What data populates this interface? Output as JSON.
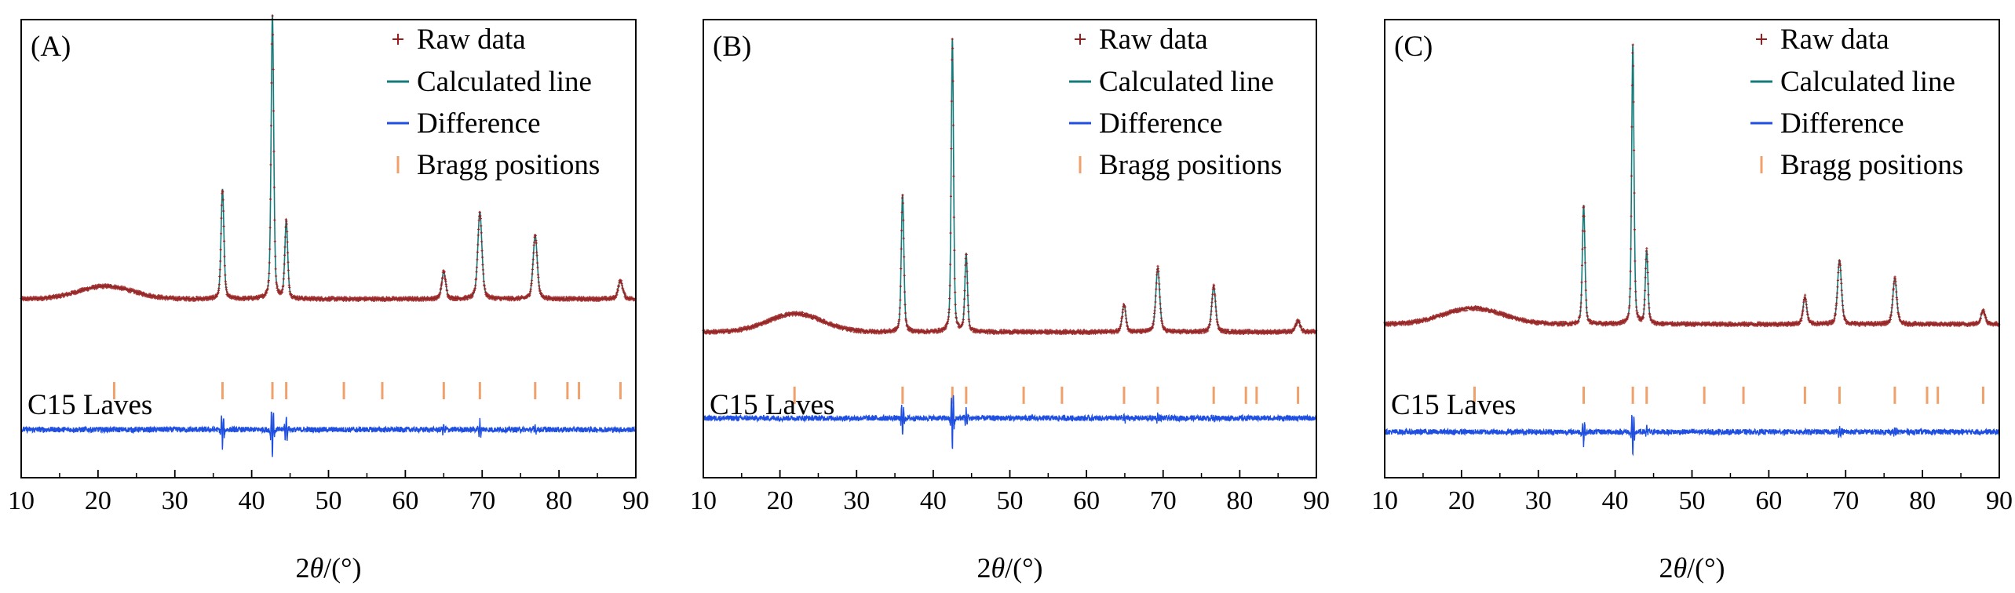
{
  "figure": {
    "description_xlabel": "2θ/(°)"
  },
  "colors": {
    "raw": "#9b1c1c",
    "calculated": "#177a7a",
    "difference": "#1f4fe0",
    "bragg": "#f0a16b",
    "axis": "#000000"
  },
  "legend": {
    "raw": "Raw data",
    "calculated": "Calculated line",
    "difference": "Difference",
    "bragg": "Bragg positions"
  },
  "chart_data": [
    {
      "type": "line",
      "panel_label": "(A)",
      "phase_label": "C15 Laves",
      "xlabel_prefix": "2",
      "xlabel_theta": "θ",
      "xlabel_suffix": "/(°)",
      "ylabel": "",
      "xlim": [
        10,
        90
      ],
      "ylim": [
        0,
        1
      ],
      "xticks": [
        10,
        20,
        30,
        40,
        50,
        60,
        70,
        80,
        90
      ],
      "series_names": [
        "Raw data",
        "Calculated line",
        "Difference"
      ],
      "raw_baseline": 0.39,
      "hump": {
        "center": 21,
        "width": 5,
        "height": 0.028
      },
      "peaks": [
        {
          "x": 36.2,
          "height": 0.24,
          "width": 0.22
        },
        {
          "x": 42.7,
          "height": 0.62,
          "width": 0.2
        },
        {
          "x": 44.5,
          "height": 0.17,
          "width": 0.22
        },
        {
          "x": 65.0,
          "height": 0.06,
          "width": 0.3
        },
        {
          "x": 69.7,
          "height": 0.19,
          "width": 0.32
        },
        {
          "x": 76.9,
          "height": 0.14,
          "width": 0.32
        },
        {
          "x": 88.0,
          "height": 0.04,
          "width": 0.35
        }
      ],
      "bragg_positions": [
        22.1,
        36.2,
        42.7,
        44.5,
        52.0,
        57.0,
        65.0,
        69.7,
        76.9,
        81.1,
        82.6,
        88.0
      ],
      "bragg_level": 0.19,
      "difference_baseline": 0.105,
      "difference_features": [
        {
          "x": 36.2,
          "amp": -0.04
        },
        {
          "x": 42.7,
          "amp": -0.06
        },
        {
          "x": 44.5,
          "amp": 0.03
        },
        {
          "x": 65.0,
          "amp": 0.01
        },
        {
          "x": 69.7,
          "amp": 0.02
        },
        {
          "x": 76.9,
          "amp": 0.01
        }
      ]
    },
    {
      "type": "line",
      "panel_label": "(B)",
      "phase_label": "C15 Laves",
      "xlabel_prefix": "2",
      "xlabel_theta": "θ",
      "xlabel_suffix": "/(°)",
      "ylabel": "",
      "xlim": [
        10,
        90
      ],
      "ylim": [
        0,
        1
      ],
      "xticks": [
        10,
        20,
        30,
        40,
        50,
        60,
        70,
        80,
        90
      ],
      "series_names": [
        "Raw data",
        "Calculated line",
        "Difference"
      ],
      "raw_baseline": 0.318,
      "hump": {
        "center": 22,
        "width": 5,
        "height": 0.04
      },
      "peaks": [
        {
          "x": 36.0,
          "height": 0.3,
          "width": 0.2
        },
        {
          "x": 42.5,
          "height": 0.64,
          "width": 0.18
        },
        {
          "x": 44.3,
          "height": 0.17,
          "width": 0.2
        },
        {
          "x": 64.9,
          "height": 0.06,
          "width": 0.28
        },
        {
          "x": 69.3,
          "height": 0.14,
          "width": 0.3
        },
        {
          "x": 76.6,
          "height": 0.1,
          "width": 0.3
        },
        {
          "x": 87.6,
          "height": 0.025,
          "width": 0.33
        }
      ],
      "bragg_positions": [
        21.9,
        36.0,
        42.5,
        44.3,
        51.8,
        56.8,
        64.9,
        69.3,
        76.6,
        80.8,
        82.2,
        87.6
      ],
      "bragg_level": 0.18,
      "difference_baseline": 0.13,
      "difference_features": [
        {
          "x": 36.0,
          "amp": -0.04
        },
        {
          "x": 42.5,
          "amp": -0.07
        },
        {
          "x": 44.3,
          "amp": 0.02
        },
        {
          "x": 64.9,
          "amp": 0.01
        },
        {
          "x": 69.3,
          "amp": 0.01
        },
        {
          "x": 76.6,
          "amp": 0.008
        }
      ]
    },
    {
      "type": "line",
      "panel_label": "(C)",
      "phase_label": "C15 Laves",
      "xlabel_prefix": "2",
      "xlabel_theta": "θ",
      "xlabel_suffix": "/(°)",
      "ylabel": "",
      "xlim": [
        10,
        90
      ],
      "ylim": [
        0,
        1
      ],
      "xticks": [
        10,
        20,
        30,
        40,
        50,
        60,
        70,
        80,
        90
      ],
      "series_names": [
        "Raw data",
        "Calculated line",
        "Difference"
      ],
      "raw_baseline": 0.335,
      "hump": {
        "center": 21.5,
        "width": 5.5,
        "height": 0.035
      },
      "peaks": [
        {
          "x": 35.9,
          "height": 0.26,
          "width": 0.2
        },
        {
          "x": 42.3,
          "height": 0.61,
          "width": 0.18
        },
        {
          "x": 44.1,
          "height": 0.16,
          "width": 0.2
        },
        {
          "x": 64.7,
          "height": 0.06,
          "width": 0.28
        },
        {
          "x": 69.2,
          "height": 0.14,
          "width": 0.3
        },
        {
          "x": 76.4,
          "height": 0.1,
          "width": 0.3
        },
        {
          "x": 87.9,
          "height": 0.03,
          "width": 0.33
        }
      ],
      "bragg_positions": [
        21.7,
        35.9,
        42.3,
        44.1,
        51.6,
        56.7,
        64.7,
        69.2,
        76.4,
        80.6,
        82.0,
        87.9
      ],
      "bragg_level": 0.18,
      "difference_baseline": 0.1,
      "difference_features": [
        {
          "x": 35.9,
          "amp": -0.03
        },
        {
          "x": 42.3,
          "amp": -0.05
        },
        {
          "x": 44.1,
          "amp": 0.01
        },
        {
          "x": 69.2,
          "amp": 0.01
        },
        {
          "x": 76.4,
          "amp": 0.01
        }
      ]
    }
  ]
}
